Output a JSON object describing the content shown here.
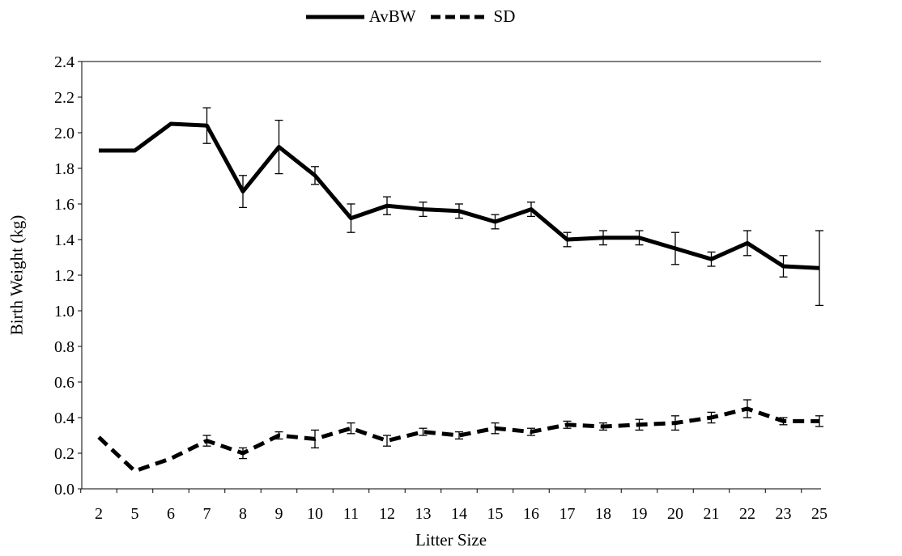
{
  "chart_data": {
    "type": "line",
    "title": "",
    "xlabel": "Litter Size",
    "ylabel": "Birth Weight (kg)",
    "categories": [
      "2",
      "5",
      "6",
      "7",
      "8",
      "9",
      "10",
      "11",
      "12",
      "13",
      "14",
      "15",
      "16",
      "17",
      "18",
      "19",
      "20",
      "21",
      "22",
      "23",
      "25"
    ],
    "ylim": [
      0,
      2.4
    ],
    "yticks": [
      "0.0",
      "0.2",
      "0.4",
      "0.6",
      "0.8",
      "1.0",
      "1.2",
      "1.4",
      "1.6",
      "1.8",
      "2.0",
      "2.2",
      "2.4"
    ],
    "grid": false,
    "legend": "top-center",
    "series": [
      {
        "name": "AvBW",
        "style": "solid",
        "color": "#000000",
        "values": [
          1.9,
          1.9,
          2.05,
          2.04,
          1.67,
          1.92,
          1.76,
          1.52,
          1.59,
          1.57,
          1.56,
          1.5,
          1.57,
          1.4,
          1.41,
          1.41,
          1.35,
          1.29,
          1.38,
          1.25,
          1.24
        ],
        "errors": [
          null,
          null,
          null,
          0.1,
          0.09,
          0.15,
          0.05,
          0.08,
          0.05,
          0.04,
          0.04,
          0.04,
          0.04,
          0.04,
          0.04,
          0.04,
          0.09,
          0.04,
          0.07,
          0.06,
          0.21
        ]
      },
      {
        "name": "SD",
        "style": "dashed",
        "color": "#000000",
        "values": [
          0.29,
          0.1,
          0.17,
          0.27,
          0.2,
          0.3,
          0.28,
          0.34,
          0.27,
          0.32,
          0.3,
          0.34,
          0.32,
          0.36,
          0.35,
          0.36,
          0.37,
          0.4,
          0.45,
          0.38,
          0.38
        ],
        "errors": [
          null,
          null,
          null,
          0.03,
          0.03,
          0.02,
          0.05,
          0.03,
          0.03,
          0.02,
          0.02,
          0.03,
          0.02,
          0.02,
          0.02,
          0.03,
          0.04,
          0.03,
          0.05,
          0.02,
          0.03
        ]
      }
    ]
  }
}
